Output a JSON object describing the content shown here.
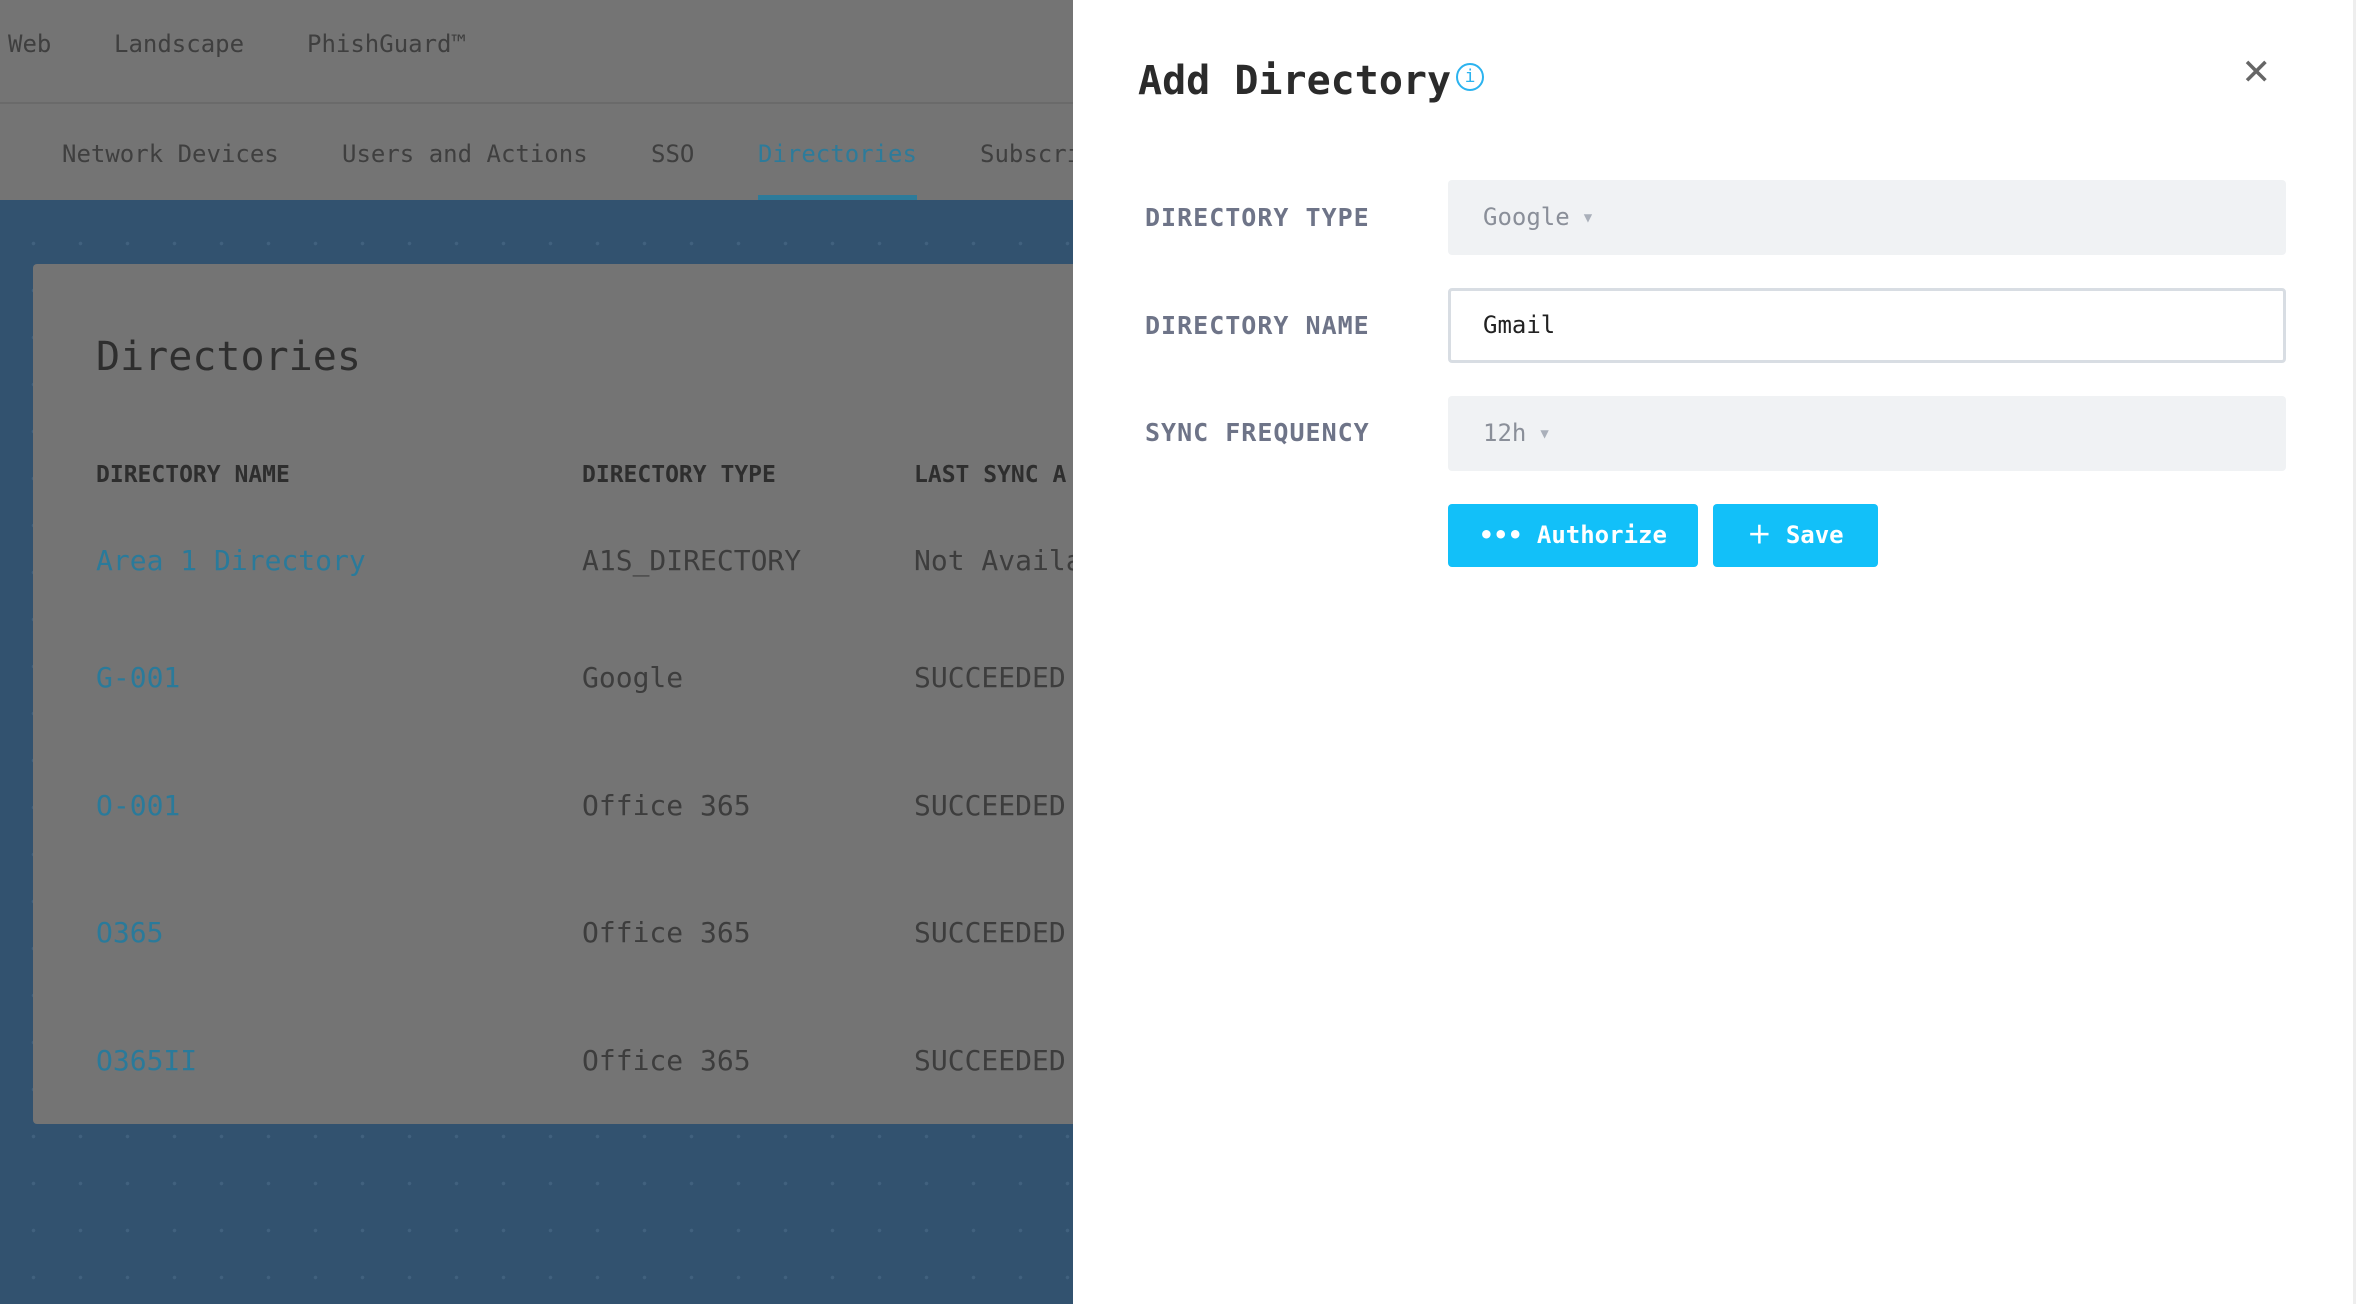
{
  "top_nav": [
    "Web",
    "Landscape",
    "PhishGuard™"
  ],
  "tabs": [
    "Network Devices",
    "Users and Actions",
    "SSO",
    "Directories",
    "Subscri"
  ],
  "card": {
    "title": "Directories",
    "columns": [
      "DIRECTORY NAME",
      "DIRECTORY TYPE",
      "LAST SYNC A"
    ],
    "rows": [
      [
        "Area 1 Directory",
        "A1S_DIRECTORY",
        "Not Availa"
      ],
      [
        "G-001",
        "Google",
        "SUCCEEDED"
      ],
      [
        "O-001",
        "Office 365",
        "SUCCEEDED"
      ],
      [
        "O365",
        "Office 365",
        "SUCCEEDED"
      ],
      [
        "O365II",
        "Office 365",
        "SUCCEEDED"
      ]
    ]
  },
  "panel": {
    "title": "Add Directory",
    "info_icon": "i",
    "close_icon": "✕",
    "fields": {
      "type_label": "DIRECTORY TYPE",
      "type_value": "Google",
      "name_label": "DIRECTORY NAME",
      "name_value": "Gmail",
      "freq_label": "SYNC FREQUENCY",
      "freq_value": "12h"
    },
    "authorize_label": "Authorize",
    "save_label": "Save",
    "accent": "#12c0f9"
  }
}
